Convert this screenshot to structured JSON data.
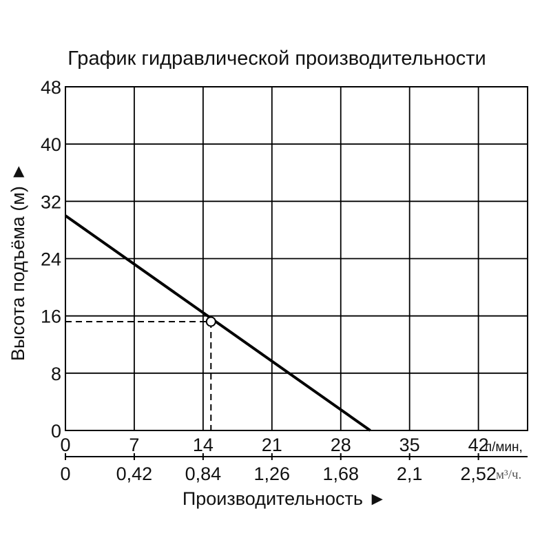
{
  "chart_data": {
    "type": "line",
    "title": "График гидравлической производительности",
    "ylabel": "Высота подъёма (м) ►",
    "xlabel": "Производительность ►",
    "x_unit_primary": "л/мин,",
    "x_unit_secondary": "м³/ч.",
    "xlim": [
      0,
      47
    ],
    "ylim": [
      0,
      48
    ],
    "x_ticks": [
      "0",
      "7",
      "14",
      "21",
      "28",
      "35",
      "42"
    ],
    "x_tick_values": [
      0,
      7,
      14,
      21,
      28,
      35,
      42
    ],
    "x2_ticks": [
      "0",
      "0,42",
      "0,84",
      "1,26",
      "1,68",
      "2,1",
      "2,52"
    ],
    "y_ticks": [
      "0",
      "8",
      "16",
      "24",
      "32",
      "40",
      "48"
    ],
    "y_tick_values": [
      0,
      8,
      16,
      24,
      32,
      40,
      48
    ],
    "grid": true,
    "series": [
      {
        "x": [
          0,
          31
        ],
        "y": [
          30,
          0
        ]
      }
    ],
    "operating_point": {
      "x": 14.8,
      "y": 15.2
    },
    "colors": {
      "line": "#000000",
      "grid": "#000000",
      "text": "#111111"
    }
  }
}
